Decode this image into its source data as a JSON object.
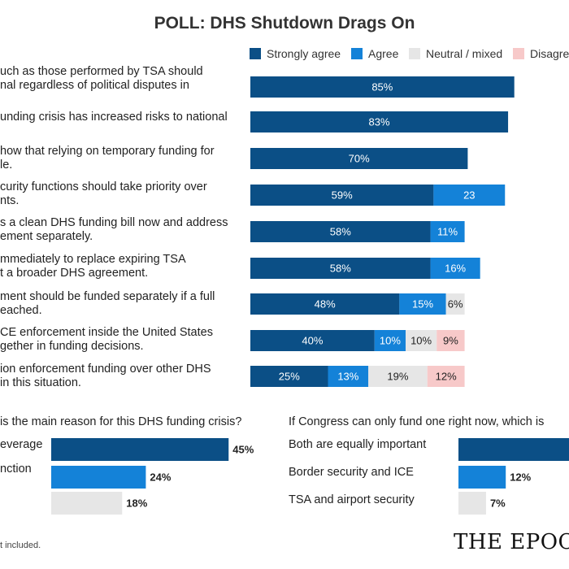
{
  "title": "POLL: DHS Shutdown Drags On",
  "legend": [
    {
      "label": "Strongly agree",
      "color": "#0b4f86"
    },
    {
      "label": "Agree",
      "color": "#1482d8"
    },
    {
      "label": "Neutral / mixed",
      "color": "#e6e6e6"
    },
    {
      "label": "Disagree",
      "color": "#f7c9c9"
    }
  ],
  "statements": [
    {
      "line1": "uch as those performed by TSA should",
      "line2": "nal regardless of political disputes in"
    },
    {
      "line1": "unding crisis has increased risks to national",
      "line2": ""
    },
    {
      "line1": "how that relying on temporary funding for",
      "line2": "le."
    },
    {
      "line1": "curity functions should take priority over",
      "line2": "nts."
    },
    {
      "line1": "s a clean DHS funding bill now and address",
      "line2": "ement separately."
    },
    {
      "line1": "mmediately to replace expiring TSA",
      "line2": "t a broader DHS agreement."
    },
    {
      "line1": "ment should be funded separately if a full",
      "line2": "eached."
    },
    {
      "line1": "CE enforcement inside the United States",
      "line2": "gether in funding decisions."
    },
    {
      "line1": "ion enforcement funding over other DHS",
      "line2": "in this situation."
    }
  ],
  "chart_data": [
    {
      "type": "bar",
      "orientation": "horizontal-stacked",
      "title": "POLL: DHS Shutdown Drags On",
      "categories": [
        "uch as those performed by TSA should nal regardless of political disputes in",
        "unding crisis has increased risks to national",
        "how that relying on temporary funding for le.",
        "curity functions should take priority over nts.",
        "s a clean DHS funding bill now and address ement separately.",
        "mmediately to replace expiring TSA t a broader DHS agreement.",
        "ment should be funded separately if a full eached.",
        "CE enforcement inside the United States gether in funding decisions.",
        "ion enforcement funding over other DHS in this situation."
      ],
      "xlim": [
        0,
        100
      ],
      "series": [
        {
          "name": "Strongly agree",
          "color": "#0b4f86",
          "values": [
            85,
            83,
            70,
            59,
            58,
            58,
            48,
            40,
            25
          ],
          "labels": [
            "85%",
            "83%",
            "70%",
            "59%",
            "58%",
            "58%",
            "48%",
            "40%",
            "25%"
          ]
        },
        {
          "name": "Agree",
          "color": "#1482d8",
          "values": [
            null,
            null,
            null,
            23,
            11,
            16,
            15,
            10,
            13
          ],
          "labels": [
            "",
            "",
            "",
            "23",
            "11%",
            "16%",
            "15%",
            "10%",
            "13%"
          ]
        },
        {
          "name": "Neutral / mixed",
          "color": "#e6e6e6",
          "values": [
            null,
            null,
            null,
            null,
            null,
            null,
            6,
            10,
            19
          ],
          "labels": [
            "",
            "",
            "",
            "",
            "",
            "",
            "6%",
            "10%",
            "19%"
          ]
        },
        {
          "name": "Disagree",
          "color": "#f7c9c9",
          "values": [
            null,
            null,
            null,
            null,
            null,
            null,
            null,
            9,
            12
          ],
          "labels": [
            "",
            "",
            "",
            "",
            "",
            "",
            "",
            "9%",
            "12%"
          ]
        }
      ]
    },
    {
      "type": "bar",
      "orientation": "horizontal",
      "title": "is the main reason for this DHS funding crisis?",
      "categories": [
        "everage",
        "nction",
        ""
      ],
      "values": [
        45,
        24,
        18
      ],
      "labels": [
        "45%",
        "24%",
        "18%"
      ],
      "colors": [
        "#0b4f86",
        "#1482d8",
        "#e6e6e6"
      ],
      "xlim": [
        0,
        100
      ]
    },
    {
      "type": "bar",
      "orientation": "horizontal",
      "title": "If Congress can only fund one right now, which is",
      "categories": [
        "Both are equally important",
        "Border security and ICE",
        "TSA and airport security"
      ],
      "values": [
        null,
        12,
        7
      ],
      "labels": [
        "",
        "12%",
        "7%"
      ],
      "colors": [
        "#0b4f86",
        "#1482d8",
        "#e6e6e6"
      ],
      "xlim": [
        0,
        100
      ]
    }
  ],
  "footnote": "t included.",
  "brand": "THE EPOC"
}
